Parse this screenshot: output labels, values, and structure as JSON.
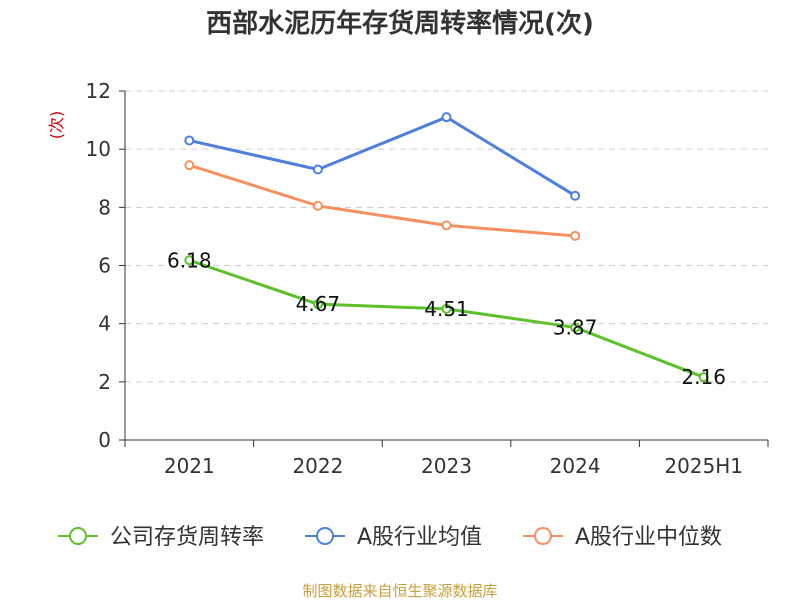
{
  "chart_data": {
    "type": "line",
    "title": "西部水泥历年存货周转率情况(次)",
    "ylabel": "(次)",
    "xlabel": "",
    "categories": [
      "2021",
      "2022",
      "2023",
      "2024",
      "2025H1"
    ],
    "ylim": [
      0,
      12
    ],
    "yticks": [
      0,
      2,
      4,
      6,
      8,
      10,
      12
    ],
    "grid": true,
    "legend_position": "bottom",
    "series": [
      {
        "name": "公司存货周转率",
        "values": [
          6.18,
          4.67,
          4.51,
          3.87,
          2.16
        ],
        "labels": [
          "6.18",
          "4.67",
          "4.51",
          "3.87",
          "2.16"
        ],
        "color": "#5cc12a",
        "show_labels": true
      },
      {
        "name": "A股行业均值",
        "values": [
          10.3,
          9.3,
          11.1,
          8.4,
          null
        ],
        "color": "#4e7fdc",
        "show_labels": false
      },
      {
        "name": "A股行业中位数",
        "values": [
          9.45,
          8.05,
          7.38,
          7.02,
          null
        ],
        "color": "#f79060",
        "show_labels": false
      }
    ]
  },
  "colors": {
    "axis": "#333333",
    "grid": "#cccccc",
    "unit": "#cc0000",
    "source": "#c8a040"
  },
  "footer": {
    "source": "制图数据来自恒生聚源数据库"
  }
}
